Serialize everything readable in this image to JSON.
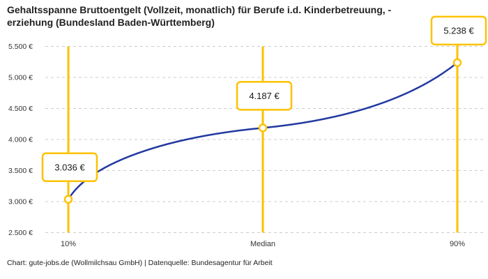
{
  "header": {
    "title_line1": "Gehaltsspanne Bruttoentgelt (Vollzeit, monatlich) für Berufe i.d. Kinderbetreuung, -",
    "title_line2": "erziehung (Bundesland Baden-Württemberg)"
  },
  "footer": {
    "attribution": "Chart: gute-jobs.de (Wollmilchsau GmbH) | Datenquelle: Bundesagentur für Arbeit"
  },
  "chart_data": {
    "type": "line",
    "title": "Gehaltsspanne Bruttoentgelt (Vollzeit, monatlich) für Berufe i.d. Kinderbetreuung, -erziehung (Bundesland Baden-Württemberg)",
    "categories": [
      "10%",
      "Median",
      "90%"
    ],
    "values": [
      3036,
      4187,
      5238
    ],
    "point_labels": [
      "3.036 €",
      "4.187 €",
      "5.238 €"
    ],
    "ylim": [
      2500,
      5500
    ],
    "y_ticks": [
      {
        "value": 5500,
        "label": "5.500 €"
      },
      {
        "value": 5000,
        "label": "5.000 €"
      },
      {
        "value": 4500,
        "label": "4.500 €"
      },
      {
        "value": 4000,
        "label": "4.000 €"
      },
      {
        "value": 3500,
        "label": "3.500 €"
      },
      {
        "value": 3000,
        "label": "3.000 €"
      },
      {
        "value": 2500,
        "label": "2.500 €"
      }
    ],
    "xlabel": "",
    "ylabel": "",
    "grid": "horizontal-dashed",
    "legend": "none",
    "colors": {
      "line": "#2139A0",
      "accent": "#FCC200",
      "grid": "#CCCCCC",
      "axis_text": "#333333",
      "label_text": "#1A1A1A",
      "label_box_fill": "#FFFFFF",
      "background": "#FFFFFF"
    }
  }
}
